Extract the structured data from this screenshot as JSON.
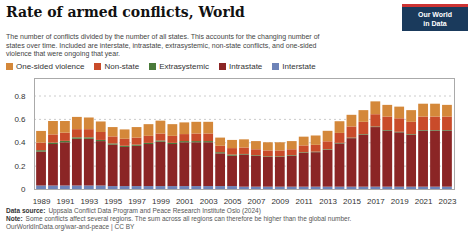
{
  "chart_data": {
    "type": "bar",
    "stacked": true,
    "title": "Rate of armed conflicts, World",
    "subtitle": "The number of conflicts divided by the number of all states. This accounts for the changing number of\nstates over time. Included are interstate, intrastate, extrasystemic, non-state conflicts, and one-sided\nviolence that were ongoing that year.",
    "categories": [
      "1989",
      null,
      "1991",
      null,
      "1993",
      null,
      "1995",
      null,
      "1997",
      null,
      "1999",
      null,
      "2001",
      null,
      "2003",
      null,
      "2005",
      null,
      "2007",
      null,
      "2009",
      null,
      "2011",
      null,
      "2013",
      null,
      "2015",
      null,
      "2017",
      null,
      "2019",
      null,
      "2021",
      null,
      "2023"
    ],
    "series": [
      {
        "name": "Interstate",
        "color": "#6D83B8",
        "values": [
          0.03,
          0.03,
          0.03,
          0.03,
          0.03,
          0.03,
          0.025,
          0.025,
          0.025,
          0.025,
          0.025,
          0.025,
          0.025,
          0.025,
          0.025,
          0.025,
          0.025,
          0.02,
          0.02,
          0.02,
          0.02,
          0.02,
          0.02,
          0.02,
          0.02,
          0.02,
          0.02,
          0.02,
          0.02,
          0.02,
          0.02,
          0.02,
          0.02,
          0.02,
          0.02
        ]
      },
      {
        "name": "Intrastate",
        "color": "#8B2525",
        "values": [
          0.29,
          0.355,
          0.37,
          0.4,
          0.4,
          0.38,
          0.355,
          0.335,
          0.345,
          0.36,
          0.38,
          0.36,
          0.375,
          0.375,
          0.375,
          0.28,
          0.26,
          0.275,
          0.265,
          0.255,
          0.255,
          0.265,
          0.29,
          0.295,
          0.315,
          0.37,
          0.415,
          0.445,
          0.51,
          0.48,
          0.465,
          0.445,
          0.48,
          0.48,
          0.48
        ]
      },
      {
        "name": "Extrasystemic",
        "color": "#4A7A3A",
        "values": [
          0.012,
          0.012,
          0.012,
          0.012,
          0.012,
          0.01,
          0.01,
          0.01,
          0.01,
          0.01,
          0.01,
          0.01,
          0.01,
          0.01,
          0.01,
          0.01,
          0.01,
          0.005,
          0.005,
          0.005,
          0.005,
          0.005,
          0.005,
          0.005,
          0.005,
          0.005,
          0.005,
          0.005,
          0.005,
          0.005,
          0.005,
          0.005,
          0.005,
          0.005,
          0.005
        ]
      },
      {
        "name": "Non-state",
        "color": "#C94B2A",
        "values": [
          0.065,
          0.07,
          0.07,
          0.07,
          0.07,
          0.068,
          0.06,
          0.06,
          0.06,
          0.06,
          0.06,
          0.06,
          0.06,
          0.065,
          0.065,
          0.055,
          0.055,
          0.055,
          0.05,
          0.05,
          0.05,
          0.05,
          0.058,
          0.058,
          0.068,
          0.085,
          0.095,
          0.105,
          0.105,
          0.115,
          0.115,
          0.105,
          0.115,
          0.115,
          0.115
        ]
      },
      {
        "name": "One-sided violence",
        "color": "#D4883A",
        "values": [
          0.1,
          0.115,
          0.1,
          0.105,
          0.1,
          0.09,
          0.08,
          0.08,
          0.09,
          0.1,
          0.11,
          0.1,
          0.1,
          0.1,
          0.1,
          0.07,
          0.07,
          0.07,
          0.07,
          0.07,
          0.07,
          0.07,
          0.075,
          0.08,
          0.09,
          0.1,
          0.1,
          0.1,
          0.11,
          0.1,
          0.1,
          0.1,
          0.11,
          0.11,
          0.1
        ]
      }
    ],
    "ylim": [
      0,
      0.95
    ],
    "yticks": [
      0,
      0.2,
      0.4,
      0.6,
      0.8
    ],
    "grid": true,
    "legend": "top",
    "footnotes": [
      {
        "label": "Data source:",
        "text": "Uppsala Conflict Data Program and Peace Research Institute Oslo (2024)"
      },
      {
        "label": "Note:",
        "text": "Some conflicts affect several regions. The sum across all regions can therefore be higher than the global number."
      },
      {
        "text": "OurWorldInData.org/war-and-peace | CC BY"
      }
    ],
    "logo": {
      "text": "Our World\nin Data",
      "colors": [
        "#CC3333",
        "#1A3A5C"
      ]
    }
  }
}
